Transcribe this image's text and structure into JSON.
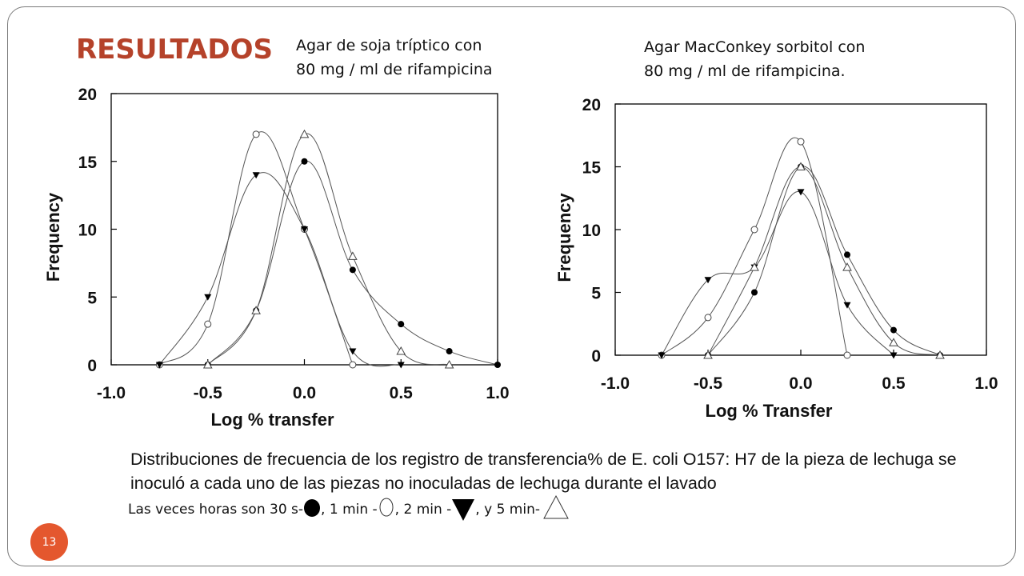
{
  "slide": {
    "title": "RESULTADOS",
    "caption_left": [
      "Agar de soja tríptico con",
      "80 mg / ml de rifampicina"
    ],
    "caption_right": [
      "Agar MacConkey sorbitol con",
      "80 mg / ml de rifampicina."
    ],
    "description": "Distribuciones de frecuencia de los registro de transferencia% de E. coli O157: H7 de la pieza de lechuga se inoculó a cada uno de las piezas no inoculadas de lechuga durante el lavado",
    "legend_text": {
      "intro": "Las veces horas son 30 s-",
      "t1": ",  1 min -",
      "t2": ",  2 min  -",
      "t3": ", y   5 min-"
    },
    "page_number": "13"
  },
  "chart_data": [
    {
      "type": "line",
      "xlabel": "Log % transfer",
      "ylabel": "Frequency",
      "xlim": [
        -1.0,
        1.0
      ],
      "ylim": [
        0,
        20
      ],
      "xticks": [
        "-1.0",
        "-0.5",
        "0.0",
        "0.5",
        "1.0"
      ],
      "yticks": [
        "0",
        "5",
        "10",
        "15",
        "20"
      ],
      "series": [
        {
          "marker": "filled-circle",
          "x": [
            -0.5,
            -0.25,
            0.0,
            0.25,
            0.5,
            0.75,
            1.0
          ],
          "y": [
            0,
            4,
            15,
            7,
            3,
            1,
            0
          ]
        },
        {
          "marker": "open-circle",
          "x": [
            -0.75,
            -0.5,
            -0.25,
            0.0,
            0.25
          ],
          "y": [
            0,
            3,
            17,
            10,
            0
          ]
        },
        {
          "marker": "filled-triangle-down",
          "x": [
            -0.75,
            -0.5,
            -0.25,
            0.0,
            0.25,
            0.5
          ],
          "y": [
            0,
            5,
            14,
            10,
            1,
            0
          ]
        },
        {
          "marker": "open-triangle-up",
          "x": [
            -0.5,
            -0.25,
            0.0,
            0.25,
            0.5,
            0.75
          ],
          "y": [
            0,
            4,
            17,
            8,
            1,
            0
          ]
        }
      ]
    },
    {
      "type": "line",
      "xlabel": "Log % Transfer",
      "ylabel": "Frequency",
      "xlim": [
        -1.0,
        1.0
      ],
      "ylim": [
        0,
        20
      ],
      "xticks": [
        "-1.0",
        "-0.5",
        "0.0",
        "0.5",
        "1.0"
      ],
      "yticks": [
        "0",
        "5",
        "10",
        "15",
        "20"
      ],
      "series": [
        {
          "marker": "filled-circle",
          "x": [
            -0.5,
            -0.25,
            0.0,
            0.25,
            0.5,
            0.75
          ],
          "y": [
            0,
            5,
            15,
            8,
            2,
            0
          ]
        },
        {
          "marker": "open-circle",
          "x": [
            -0.75,
            -0.5,
            -0.25,
            0.0,
            0.25
          ],
          "y": [
            0,
            3,
            10,
            17,
            0
          ]
        },
        {
          "marker": "filled-triangle-down",
          "x": [
            -0.75,
            -0.5,
            -0.25,
            0.0,
            0.25,
            0.5
          ],
          "y": [
            0,
            6,
            7,
            13,
            4,
            0
          ]
        },
        {
          "marker": "open-triangle-up",
          "x": [
            -0.5,
            -0.25,
            0.0,
            0.25,
            0.5,
            0.75
          ],
          "y": [
            0,
            7,
            15,
            7,
            1,
            0
          ]
        }
      ]
    }
  ]
}
